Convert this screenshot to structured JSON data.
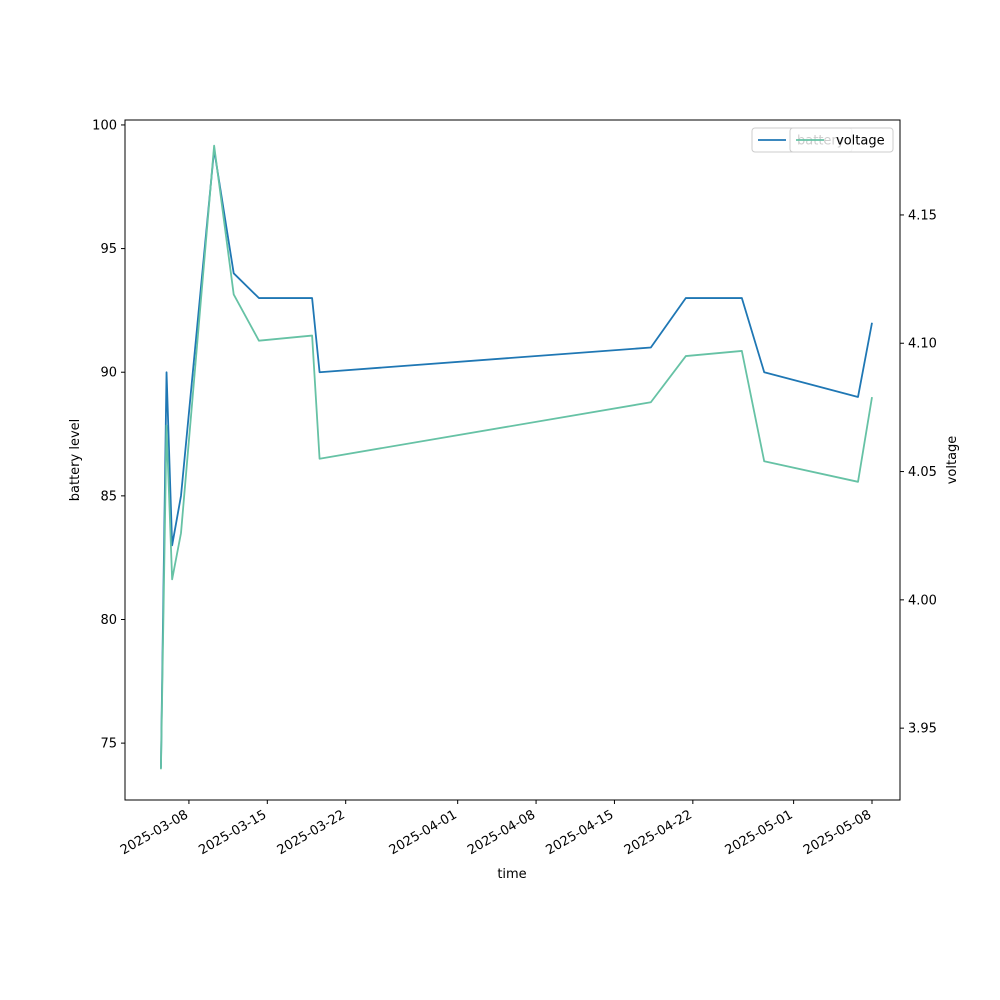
{
  "chart_data": {
    "type": "line",
    "xlabel": "time",
    "ylabel_left": "battery level",
    "ylabel_right": "voltage",
    "x_ticks": [
      "2025-03-08",
      "2025-03-15",
      "2025-03-22",
      "2025-04-01",
      "2025-04-08",
      "2025-04-15",
      "2025-04-22",
      "2025-05-01",
      "2025-05-08"
    ],
    "y_left_ticks": [
      75,
      80,
      85,
      90,
      95,
      100
    ],
    "y_right_ticks": [
      3.95,
      4.0,
      4.05,
      4.1,
      4.15
    ],
    "y_left_range": [
      72.7,
      100.2
    ],
    "y_right_range": [
      3.922,
      4.187
    ],
    "x_range": [
      "2025-03-02T07:00",
      "2025-05-10T12:00"
    ],
    "grid": false,
    "legend_placement": "top-right",
    "series": [
      {
        "name": "battery",
        "axis": "left",
        "color": "#1f77b4",
        "points": [
          {
            "t": "2025-03-05T12:00",
            "y": 74
          },
          {
            "t": "2025-03-06T00:00",
            "y": 90
          },
          {
            "t": "2025-03-06T12:00",
            "y": 83
          },
          {
            "t": "2025-03-07T07:00",
            "y": 85
          },
          {
            "t": "2025-03-10T06:00",
            "y": 99
          },
          {
            "t": "2025-03-12T00:00",
            "y": 94
          },
          {
            "t": "2025-03-14T06:00",
            "y": 93
          },
          {
            "t": "2025-03-19T00:00",
            "y": 93
          },
          {
            "t": "2025-03-19T16:00",
            "y": 90
          },
          {
            "t": "2025-04-18T06:00",
            "y": 91
          },
          {
            "t": "2025-04-21T09:00",
            "y": 93
          },
          {
            "t": "2025-04-26T09:00",
            "y": 93
          },
          {
            "t": "2025-04-28T09:00",
            "y": 90
          },
          {
            "t": "2025-05-06T18:00",
            "y": 89
          },
          {
            "t": "2025-05-08T00:00",
            "y": 92
          }
        ]
      },
      {
        "name": "voltage",
        "axis": "right",
        "color": "#66c2a5",
        "points": [
          {
            "t": "2025-03-05T12:00",
            "y": 3.934
          },
          {
            "t": "2025-03-06T00:00",
            "y": 4.068
          },
          {
            "t": "2025-03-06T12:00",
            "y": 4.008
          },
          {
            "t": "2025-03-07T07:00",
            "y": 4.026
          },
          {
            "t": "2025-03-10T06:00",
            "y": 4.177
          },
          {
            "t": "2025-03-12T00:00",
            "y": 4.119
          },
          {
            "t": "2025-03-14T06:00",
            "y": 4.101
          },
          {
            "t": "2025-03-19T00:00",
            "y": 4.103
          },
          {
            "t": "2025-03-19T16:00",
            "y": 4.055
          },
          {
            "t": "2025-04-18T06:00",
            "y": 4.077
          },
          {
            "t": "2025-04-21T09:00",
            "y": 4.095
          },
          {
            "t": "2025-04-26T09:00",
            "y": 4.097
          },
          {
            "t": "2025-04-28T09:00",
            "y": 4.054
          },
          {
            "t": "2025-05-06T18:00",
            "y": 4.046
          },
          {
            "t": "2025-05-08T00:00",
            "y": 4.079
          }
        ]
      }
    ]
  }
}
